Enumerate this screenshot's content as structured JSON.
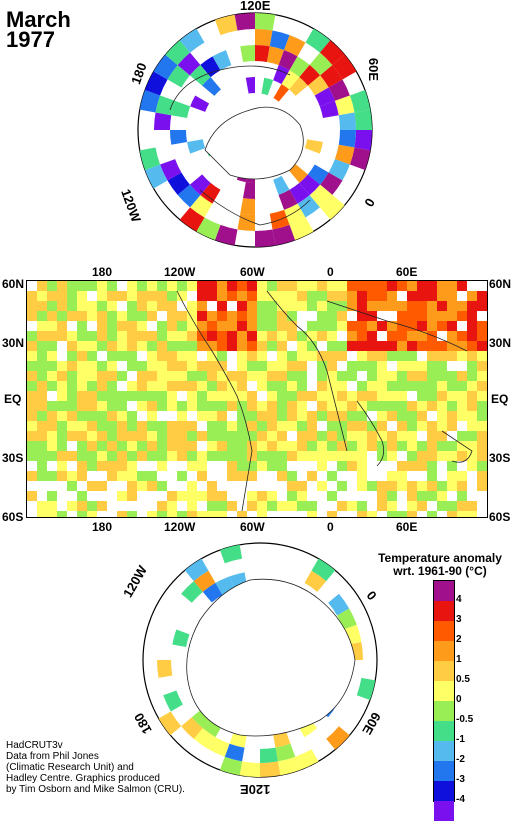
{
  "title": {
    "month": "March",
    "year": "1977"
  },
  "north_polar": {
    "labels": [
      "120E",
      "60E",
      "0",
      "120W",
      "180"
    ]
  },
  "south_polar": {
    "labels": [
      "120W",
      "0",
      "60E",
      "120E",
      "180"
    ]
  },
  "map": {
    "top_lon_labels": [
      "180",
      "120W",
      "60W",
      "0",
      "60E"
    ],
    "bottom_lon_labels": [
      "180",
      "120W",
      "60W",
      "0",
      "60E"
    ],
    "left_lat_labels": [
      "60N",
      "30N",
      "EQ",
      "30S",
      "60S"
    ],
    "right_lat_labels": [
      "60N",
      "30N",
      "EQ",
      "30S",
      "60S"
    ]
  },
  "legend": {
    "title_line1": "Temperature anomaly",
    "title_line2": "wrt. 1961-90  (°C)",
    "bins": [
      {
        "label": "4",
        "color": "#a0108c"
      },
      {
        "label": "3",
        "color": "#e8140f"
      },
      {
        "label": "2",
        "color": "#ff5a00"
      },
      {
        "label": "1",
        "color": "#ff9b1a"
      },
      {
        "label": "0.5",
        "color": "#ffcc44"
      },
      {
        "label": "0",
        "color": "#ffff66"
      },
      {
        "label": "-0.5",
        "color": "#99ee55"
      },
      {
        "label": "-1",
        "color": "#44dd88"
      },
      {
        "label": "-2",
        "color": "#55bbee"
      },
      {
        "label": "-3",
        "color": "#2277ee"
      },
      {
        "label": "-4",
        "color": "#1010dd"
      },
      {
        "label": "",
        "color": "#7a10ee"
      }
    ]
  },
  "credits": {
    "line1": "HadCRUT3v",
    "line2": "Data from Phil Jones",
    "line3": "(Climatic Research Unit) and",
    "line4": "Hadley Centre.  Graphics produced",
    "line5": "by Tim Osborn and Mike Salmon (CRU)."
  }
}
